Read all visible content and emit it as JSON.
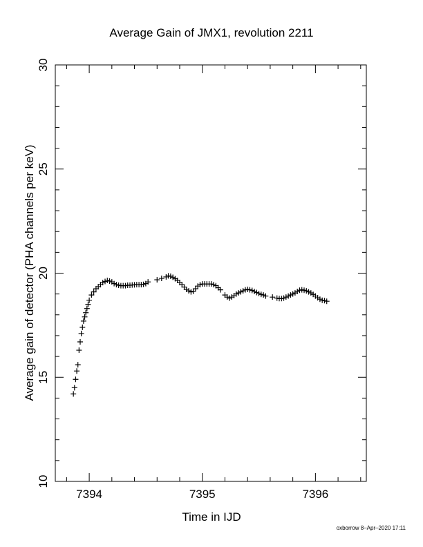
{
  "chart_data": {
    "type": "scatter",
    "title": "Average Gain of JMX1, revolution 2211",
    "xlabel": "Time in IJD",
    "ylabel": "Average gain of detector (PHA channels per keV)",
    "xlim": [
      7393.7,
      7396.45
    ],
    "ylim": [
      10,
      30
    ],
    "xticks": [
      7394,
      7395,
      7396
    ],
    "xtick_labels": [
      "7394",
      "7395",
      "7396"
    ],
    "yticks": [
      10,
      15,
      20,
      25,
      30
    ],
    "ytick_labels": [
      "10",
      "15",
      "20",
      "25",
      "30"
    ],
    "grid": false,
    "marker": "plus",
    "color": "#000000",
    "series": [
      {
        "x": [
          7393.86,
          7393.87,
          7393.88,
          7393.89,
          7393.9,
          7393.91,
          7393.92,
          7393.93,
          7393.94,
          7393.95,
          7393.96,
          7393.97,
          7393.98,
          7393.99,
          7394.0,
          7394.02,
          7394.04,
          7394.06,
          7394.08,
          7394.1,
          7394.12,
          7394.14,
          7394.16,
          7394.18,
          7394.2,
          7394.22,
          7394.24,
          7394.26,
          7394.28,
          7394.3,
          7394.32,
          7394.34,
          7394.36,
          7394.38,
          7394.4,
          7394.42,
          7394.44,
          7394.46,
          7394.48,
          7394.5,
          7394.52,
          7394.6,
          7394.64,
          7394.68,
          7394.7,
          7394.72,
          7394.74,
          7394.76,
          7394.78,
          7394.8,
          7394.82,
          7394.84,
          7394.86,
          7394.88,
          7394.9,
          7394.92,
          7394.94,
          7394.96,
          7394.98,
          7395.0,
          7395.02,
          7395.04,
          7395.06,
          7395.08,
          7395.1,
          7395.12,
          7395.14,
          7395.16,
          7395.2,
          7395.22,
          7395.24,
          7395.26,
          7395.28,
          7395.3,
          7395.32,
          7395.34,
          7395.36,
          7395.38,
          7395.4,
          7395.42,
          7395.44,
          7395.46,
          7395.48,
          7395.5,
          7395.52,
          7395.54,
          7395.56,
          7395.62,
          7395.66,
          7395.68,
          7395.7,
          7395.72,
          7395.74,
          7395.76,
          7395.78,
          7395.8,
          7395.82,
          7395.84,
          7395.86,
          7395.88,
          7395.9,
          7395.92,
          7395.94,
          7395.96,
          7395.98,
          7396.0,
          7396.02,
          7396.04,
          7396.06,
          7396.08,
          7396.1
        ],
        "y": [
          14.2,
          14.5,
          14.9,
          15.3,
          15.6,
          16.3,
          16.7,
          17.1,
          17.4,
          17.7,
          17.9,
          18.1,
          18.3,
          18.5,
          18.7,
          18.95,
          19.1,
          19.25,
          19.35,
          19.45,
          19.55,
          19.6,
          19.65,
          19.62,
          19.58,
          19.5,
          19.45,
          19.42,
          19.4,
          19.4,
          19.4,
          19.42,
          19.42,
          19.43,
          19.44,
          19.45,
          19.45,
          19.45,
          19.46,
          19.5,
          19.58,
          19.68,
          19.75,
          19.82,
          19.87,
          19.85,
          19.8,
          19.73,
          19.65,
          19.55,
          19.45,
          19.33,
          19.22,
          19.15,
          19.1,
          19.13,
          19.25,
          19.38,
          19.45,
          19.48,
          19.48,
          19.48,
          19.48,
          19.48,
          19.45,
          19.4,
          19.3,
          19.2,
          18.95,
          18.85,
          18.8,
          18.85,
          18.92,
          19.0,
          19.05,
          19.1,
          19.15,
          19.2,
          19.22,
          19.2,
          19.17,
          19.12,
          19.07,
          19.02,
          18.98,
          18.95,
          18.9,
          18.85,
          18.8,
          18.78,
          18.78,
          18.8,
          18.85,
          18.9,
          18.95,
          19.0,
          19.05,
          19.12,
          19.18,
          19.2,
          19.18,
          19.15,
          19.1,
          19.05,
          18.98,
          18.9,
          18.82,
          18.75,
          18.7,
          18.68,
          18.65
        ]
      }
    ]
  },
  "footer": {
    "signature": "oxborrow  8–Apr–2020 17:11"
  }
}
